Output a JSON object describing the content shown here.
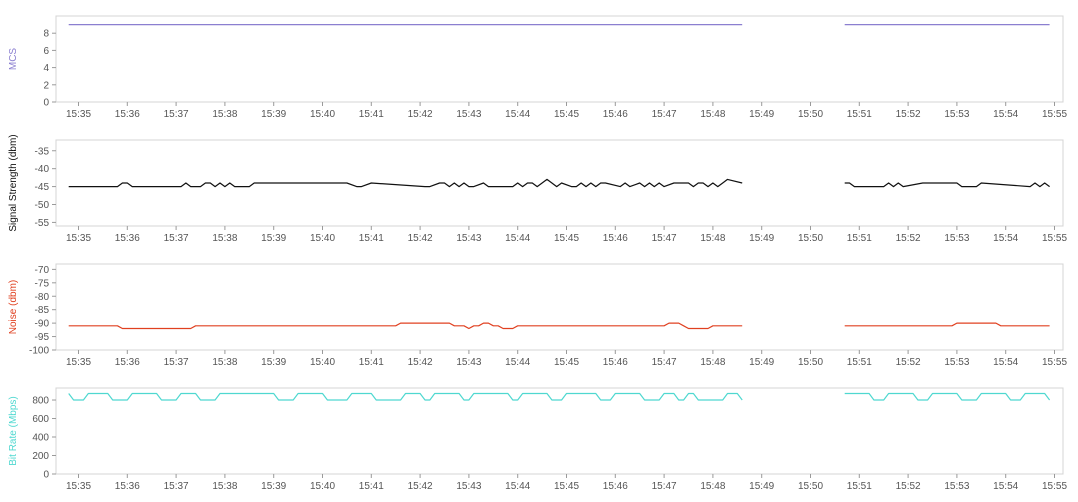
{
  "chart_data": [
    {
      "type": "line",
      "ylabel": "MCS",
      "color": "#8b7fd0",
      "ylim": [
        0,
        10
      ],
      "yticks": [
        0,
        2,
        4,
        6,
        8
      ],
      "x_ticks": [
        "15:35",
        "15:36",
        "15:37",
        "15:38",
        "15:39",
        "15:40",
        "15:41",
        "15:42",
        "15:43",
        "15:44",
        "15:45",
        "15:46",
        "15:47",
        "15:48",
        "15:49",
        "15:50",
        "15:51",
        "15:52",
        "15:53",
        "15:54",
        "15:55"
      ],
      "segments": [
        {
          "x": [
            "15:34.8",
            "15:48.6"
          ],
          "y": [
            9,
            9
          ]
        },
        {
          "x": [
            "15:50.7",
            "15:54.9"
          ],
          "y": [
            9,
            9
          ]
        }
      ]
    },
    {
      "type": "line",
      "ylabel": "Signal Strength (dbm)",
      "color": "#111111",
      "ylim": [
        -56,
        -32
      ],
      "yticks": [
        -55,
        -50,
        -45,
        -40,
        -35
      ],
      "x_ticks": [
        "15:35",
        "15:36",
        "15:37",
        "15:38",
        "15:39",
        "15:40",
        "15:41",
        "15:42",
        "15:43",
        "15:44",
        "15:45",
        "15:46",
        "15:47",
        "15:48",
        "15:49",
        "15:50",
        "15:51",
        "15:52",
        "15:53",
        "15:54",
        "15:55"
      ],
      "segments": [
        {
          "x": [
            "15:34.8",
            "15:35.8",
            "15:35.9",
            "15:36.0",
            "15:36.1",
            "15:36.2",
            "15:37.1",
            "15:37.2",
            "15:37.3",
            "15:37.5",
            "15:37.6",
            "15:37.7",
            "15:37.8",
            "15:37.9",
            "15:38.0",
            "15:38.1",
            "15:38.2",
            "15:38.5",
            "15:38.6",
            "15:40.4",
            "15:40.5",
            "15:40.7",
            "15:40.8",
            "15:41.0",
            "15:42.1",
            "15:42.2",
            "15:42.4",
            "15:42.5",
            "15:42.6",
            "15:42.7",
            "15:42.8",
            "15:42.9",
            "15:43.0",
            "15:43.1",
            "15:43.3",
            "15:43.4",
            "15:43.8",
            "15:43.9",
            "15:44.0",
            "15:44.1",
            "15:44.2",
            "15:44.3",
            "15:44.4",
            "15:44.5",
            "15:44.6",
            "15:44.7",
            "15:44.8",
            "15:44.9",
            "15:45.1",
            "15:45.2",
            "15:45.3",
            "15:45.4",
            "15:45.5",
            "15:45.6",
            "15:45.7",
            "15:45.8",
            "15:46.1",
            "15:46.2",
            "15:46.3",
            "15:46.5",
            "15:46.6",
            "15:46.7",
            "15:46.8",
            "15:46.9",
            "15:47.0",
            "15:47.2",
            "15:47.5",
            "15:47.6",
            "15:47.7",
            "15:47.8",
            "15:47.9",
            "15:48.0",
            "15:48.1",
            "15:48.2",
            "15:48.3",
            "15:48.6"
          ],
          "y": [
            -45,
            -45,
            -44,
            -44,
            -45,
            -45,
            -45,
            -44,
            -45,
            -45,
            -44,
            -44,
            -45,
            -44,
            -45,
            -44,
            -45,
            -45,
            -44,
            -44,
            -44,
            -45,
            -45,
            -44,
            -45,
            -45,
            -44,
            -44,
            -45,
            -44,
            -45,
            -44,
            -45,
            -45,
            -44,
            -45,
            -45,
            -45,
            -44,
            -45,
            -44,
            -44,
            -45,
            -44,
            -43,
            -44,
            -45,
            -44,
            -45,
            -45,
            -44,
            -45,
            -44,
            -45,
            -44,
            -44,
            -45,
            -44,
            -45,
            -44,
            -45,
            -44,
            -45,
            -44,
            -45,
            -44,
            -44,
            -45,
            -44,
            -44,
            -45,
            -44,
            -45,
            -44,
            -43,
            -44
          ]
        },
        {
          "x": [
            "15:50.7",
            "15:50.8",
            "15:50.9",
            "15:51.5",
            "15:51.6",
            "15:51.7",
            "15:51.8",
            "15:51.9",
            "15:52.3",
            "15:53.0",
            "15:53.1",
            "15:53.4",
            "15:53.5",
            "15:54.5",
            "15:54.6",
            "15:54.7",
            "15:54.8",
            "15:54.9"
          ],
          "y": [
            -44,
            -44,
            -45,
            -45,
            -44,
            -45,
            -44,
            -45,
            -44,
            -44,
            -45,
            -45,
            -44,
            -45,
            -44,
            -45,
            -44,
            -45
          ]
        }
      ]
    },
    {
      "type": "line",
      "ylabel": "Noise (dbm)",
      "color": "#e04020",
      "ylim": [
        -100,
        -68
      ],
      "yticks": [
        -100,
        -95,
        -90,
        -85,
        -80,
        -75,
        -70
      ],
      "x_ticks": [
        "15:35",
        "15:36",
        "15:37",
        "15:38",
        "15:39",
        "15:40",
        "15:41",
        "15:42",
        "15:43",
        "15:44",
        "15:45",
        "15:46",
        "15:47",
        "15:48",
        "15:49",
        "15:50",
        "15:51",
        "15:52",
        "15:53",
        "15:54",
        "15:55"
      ],
      "segments": [
        {
          "x": [
            "15:34.8",
            "15:35.8",
            "15:35.9",
            "15:37.3",
            "15:37.4",
            "15:41.5",
            "15:41.6",
            "15:42.6",
            "15:42.7",
            "15:42.9",
            "15:43.0",
            "15:43.1",
            "15:43.2",
            "15:43.3",
            "15:43.4",
            "15:43.5",
            "15:43.6",
            "15:43.7",
            "15:43.9",
            "15:44.0",
            "15:47.0",
            "15:47.1",
            "15:47.3",
            "15:47.4",
            "15:47.5",
            "15:47.9",
            "15:48.0",
            "15:48.3",
            "15:48.6"
          ],
          "y": [
            -91,
            -91,
            -92,
            -92,
            -91,
            -91,
            -90,
            -90,
            -91,
            -91,
            -92,
            -91,
            -91,
            -90,
            -90,
            -91,
            -91,
            -92,
            -92,
            -91,
            -91,
            -90,
            -90,
            -91,
            -92,
            -92,
            -91,
            -91,
            -91
          ]
        },
        {
          "x": [
            "15:50.7",
            "15:52.9",
            "15:53.0",
            "15:53.8",
            "15:53.9",
            "15:54.9"
          ],
          "y": [
            -91,
            -91,
            -90,
            -90,
            -91,
            -91
          ]
        }
      ]
    },
    {
      "type": "line",
      "ylabel": "Bit Rate (Mbps)",
      "color": "#4fd8d0",
      "ylim": [
        0,
        930
      ],
      "yticks": [
        0,
        200,
        400,
        600,
        800
      ],
      "x_ticks": [
        "15:35",
        "15:36",
        "15:37",
        "15:38",
        "15:39",
        "15:40",
        "15:41",
        "15:42",
        "15:43",
        "15:44",
        "15:45",
        "15:46",
        "15:47",
        "15:48",
        "15:49",
        "15:50",
        "15:51",
        "15:52",
        "15:53",
        "15:54",
        "15:55"
      ],
      "segments": [
        {
          "x": [
            "15:34.8",
            "15:34.9",
            "15:35.1",
            "15:35.2",
            "15:35.6",
            "15:35.7",
            "15:36.0",
            "15:36.1",
            "15:36.6",
            "15:36.7",
            "15:37.0",
            "15:37.1",
            "15:37.4",
            "15:37.5",
            "15:37.8",
            "15:37.9",
            "15:39.0",
            "15:39.1",
            "15:39.4",
            "15:39.5",
            "15:40.0",
            "15:40.1",
            "15:40.5",
            "15:40.6",
            "15:41.0",
            "15:41.1",
            "15:41.6",
            "15:41.7",
            "15:42.0",
            "15:42.1",
            "15:42.2",
            "15:42.3",
            "15:42.8",
            "15:42.9",
            "15:43.0",
            "15:43.1",
            "15:43.8",
            "15:43.9",
            "15:44.0",
            "15:44.1",
            "15:44.6",
            "15:44.7",
            "15:44.9",
            "15:45.0",
            "15:45.6",
            "15:45.7",
            "15:45.9",
            "15:46.0",
            "15:46.5",
            "15:46.6",
            "15:46.9",
            "15:47.0",
            "15:47.2",
            "15:47.3",
            "15:47.4",
            "15:47.5",
            "15:47.6",
            "15:47.7",
            "15:48.2",
            "15:48.3",
            "15:48.5",
            "15:48.6"
          ],
          "y": [
            870,
            800,
            800,
            870,
            870,
            800,
            800,
            870,
            870,
            800,
            800,
            870,
            870,
            800,
            800,
            870,
            870,
            800,
            800,
            870,
            870,
            800,
            800,
            870,
            870,
            800,
            800,
            870,
            870,
            800,
            800,
            870,
            870,
            800,
            800,
            870,
            870,
            800,
            800,
            870,
            870,
            800,
            800,
            870,
            870,
            800,
            800,
            870,
            870,
            800,
            800,
            870,
            870,
            800,
            800,
            870,
            870,
            800,
            800,
            870,
            870,
            800
          ]
        },
        {
          "x": [
            "15:50.7",
            "15:51.2",
            "15:51.3",
            "15:51.5",
            "15:51.6",
            "15:52.1",
            "15:52.2",
            "15:52.4",
            "15:52.5",
            "15:53.0",
            "15:53.1",
            "15:53.4",
            "15:53.5",
            "15:54.0",
            "15:54.1",
            "15:54.3",
            "15:54.4",
            "15:54.8",
            "15:54.9"
          ],
          "y": [
            870,
            870,
            800,
            800,
            870,
            870,
            800,
            800,
            870,
            870,
            800,
            800,
            870,
            870,
            800,
            800,
            870,
            870,
            800
          ]
        }
      ]
    }
  ]
}
